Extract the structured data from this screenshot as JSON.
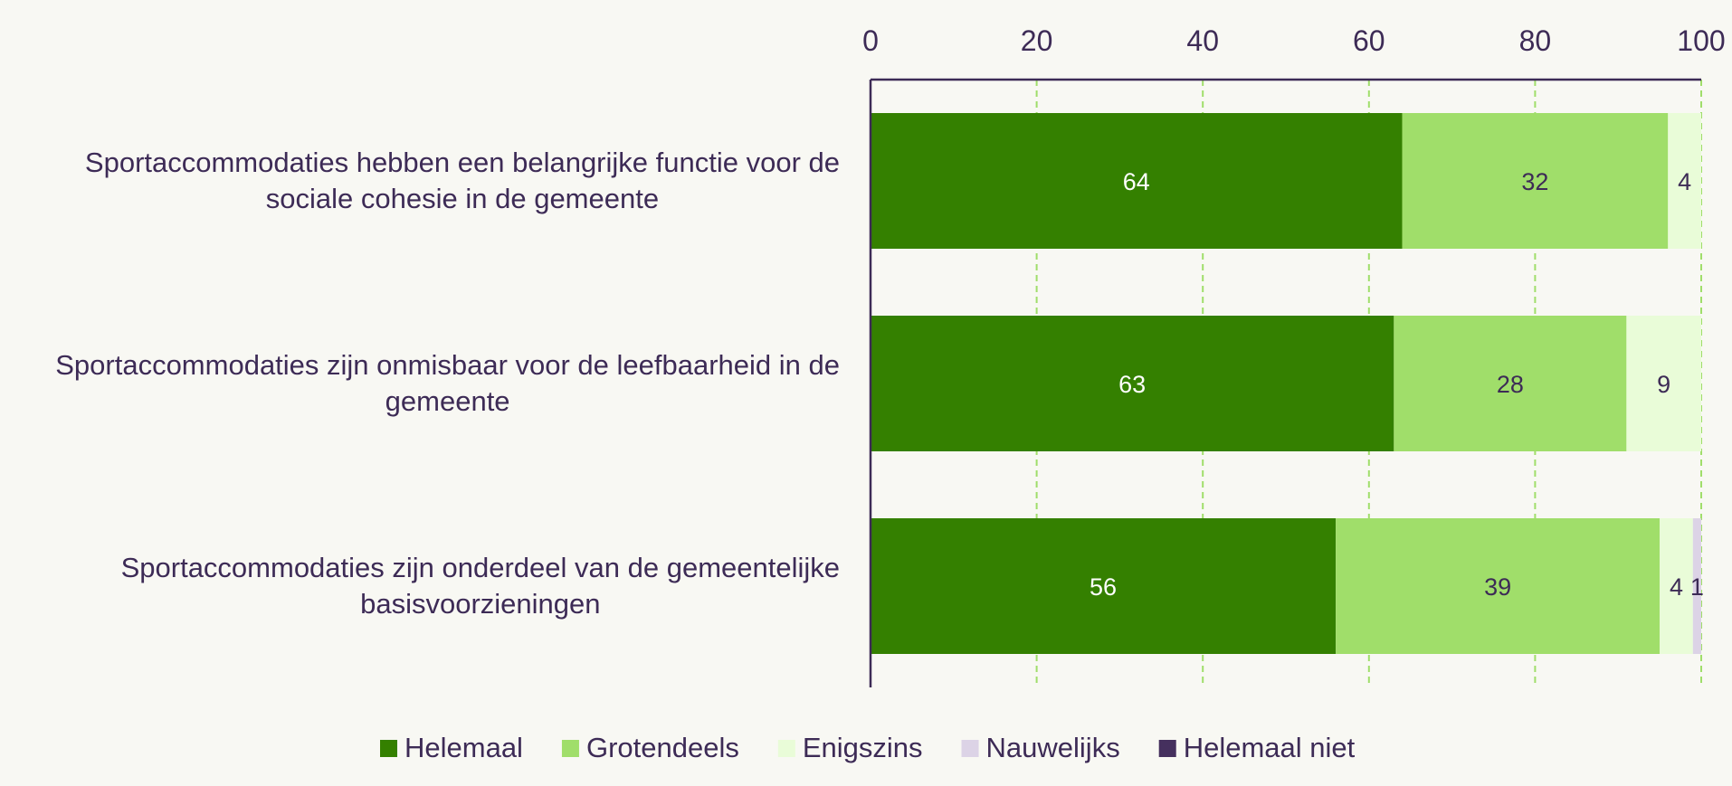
{
  "chart_data": {
    "type": "bar",
    "orientation": "horizontal",
    "stacked": true,
    "xlim": [
      0,
      100
    ],
    "xticks": [
      0,
      20,
      40,
      60,
      80,
      100
    ],
    "xaxis_position": "top",
    "grid": true,
    "legend_position": "bottom",
    "categories": [
      [
        "Sportaccommodaties hebben een belangrijke functie voor de",
        "sociale cohesie in de gemeente"
      ],
      [
        "Sportaccommodaties zijn onmisbaar voor de leefbaarheid in de",
        "gemeente"
      ],
      [
        "Sportaccommodaties zijn onderdeel van de gemeentelijke",
        "basisvoorzieningen"
      ]
    ],
    "series": [
      {
        "name": "Helemaal",
        "color": "#348000",
        "label_color": "#ffffff",
        "values": [
          64,
          63,
          56
        ]
      },
      {
        "name": "Grotendeels",
        "color": "#a0de6a",
        "label_color": "#3d2b56",
        "values": [
          32,
          28,
          39
        ]
      },
      {
        "name": "Enigszins",
        "color": "#e9fcd8",
        "label_color": "#3d2b56",
        "values": [
          4,
          9,
          4
        ]
      },
      {
        "name": "Nauwelijks",
        "color": "#dcd3e6",
        "label_color": "#3d2b56",
        "values": [
          0,
          0,
          1
        ]
      },
      {
        "name": "Helemaal niet",
        "color": "#45305e",
        "label_color": "#ffffff",
        "values": [
          0,
          0,
          0
        ]
      }
    ]
  }
}
